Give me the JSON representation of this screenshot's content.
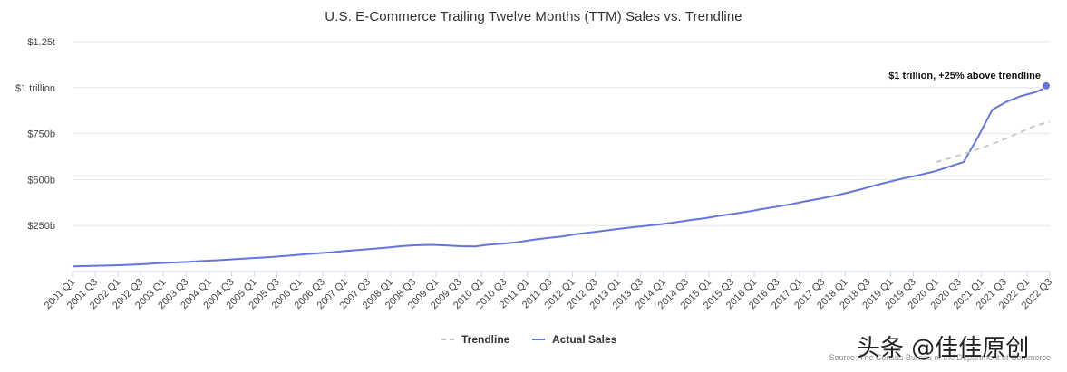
{
  "chart_data": {
    "type": "line",
    "title": "U.S. E-Commerce Trailing Twelve Months (TTM) Sales vs. Trendline",
    "xlabel": "",
    "ylabel": "",
    "ylim": [
      0,
      1250
    ],
    "y_unit": "billions USD",
    "y_ticks": [
      {
        "value": 250,
        "label": "$250b"
      },
      {
        "value": 500,
        "label": "$500b"
      },
      {
        "value": 750,
        "label": "$750b"
      },
      {
        "value": 1000,
        "label": "$1 trillion"
      },
      {
        "value": 1250,
        "label": "$1.25t"
      }
    ],
    "x_labels": [
      "2001 Q1",
      "2001 Q3",
      "2002 Q1",
      "2002 Q3",
      "2003 Q1",
      "2003 Q3",
      "2004 Q1",
      "2004 Q3",
      "2005 Q1",
      "2005 Q3",
      "2006 Q1",
      "2006 Q3",
      "2007 Q1",
      "2007 Q3",
      "2008 Q1",
      "2008 Q3",
      "2009 Q1",
      "2009 Q3",
      "2010 Q1",
      "2010 Q3",
      "2011 Q1",
      "2011 Q3",
      "2012 Q1",
      "2012 Q3",
      "2013 Q1",
      "2013 Q3",
      "2014 Q1",
      "2014 Q3",
      "2015 Q1",
      "2015 Q3",
      "2016 Q1",
      "2016 Q3",
      "2017 Q1",
      "2017 Q3",
      "2018 Q1",
      "2018 Q3",
      "2019 Q1",
      "2019 Q3",
      "2020 Q1",
      "2020 Q3",
      "2021 Q1",
      "2021 Q3",
      "2022 Q1",
      "2022 Q3"
    ],
    "series": [
      {
        "name": "Actual Sales",
        "color": "#6474e0",
        "values": [
          28,
          30,
          32,
          34,
          37,
          41,
          46,
          49,
          52,
          57,
          61,
          66,
          71,
          75,
          80,
          86,
          93,
          99,
          105,
          112,
          118,
          124,
          131,
          139,
          143,
          145,
          142,
          138,
          137,
          146,
          152,
          160,
          172,
          182,
          190,
          203,
          212,
          222,
          232,
          241,
          249,
          258,
          268,
          280,
          290,
          303,
          314,
          326,
          340,
          353,
          366,
          382,
          396,
          412,
          430,
          450,
          472,
          491,
          510,
          526,
          545,
          570,
          595,
          730,
          880,
          923,
          954,
          975,
          1010
        ],
        "x_positions": "per quarter from 2001 Q1 to 2022 Q3 (87 quarters, sampled every 1.25 quarters in values list; rendered smoothly)"
      },
      {
        "name": "Trendline",
        "color": "#c8c8c8",
        "dashed": true,
        "values": [
          595,
          620,
          648,
          678,
          712,
          750,
          790,
          815
        ],
        "x_range": [
          "2020 Q1",
          "2022 Q3"
        ]
      }
    ],
    "annotation": "$1 trillion, +25% above trendline",
    "legend": [
      "Trendline",
      "Actual Sales"
    ],
    "legend_position": "bottom-center",
    "grid": true
  },
  "source_text": "Source: The Census Bureau of the Department of Commerce",
  "watermark_text": "头条 @佳佳原创"
}
